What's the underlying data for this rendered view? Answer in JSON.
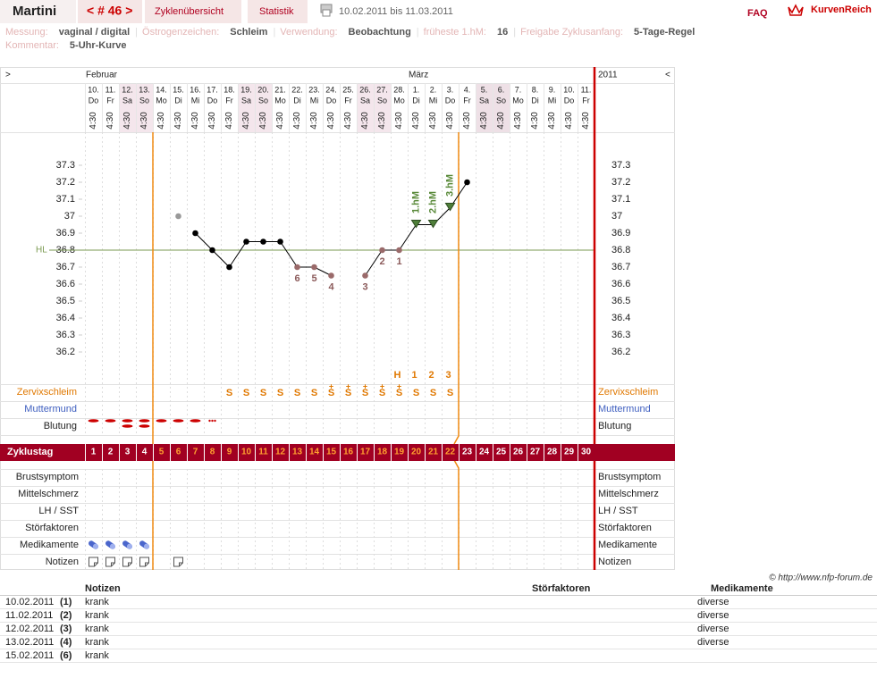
{
  "header": {
    "user": "Martini",
    "cycle_nav": "< # 46 >",
    "tabs": [
      "Zyklenübersicht",
      "Statistik"
    ],
    "period": "10.02.2011 bis 11.03.2011",
    "faq": "FAQ",
    "brand": "KurvenReich"
  },
  "info": {
    "items": [
      {
        "label": "Messung:",
        "value": "vaginal / digital"
      },
      {
        "label": "Östrogenzeichen:",
        "value": "Schleim"
      },
      {
        "label": "Verwendung:",
        "value": "Beobachtung"
      },
      {
        "label": "früheste 1.hM:",
        "value": 16
      },
      {
        "label": "Freigabe Zyklusanfang:",
        "value": "5-Tage-Regel"
      }
    ],
    "comment_label": "Kommentar:",
    "comment": "5-Uhr-Kurve"
  },
  "chart_data": {
    "type": "line",
    "nav_prev": ">",
    "nav_next": "<",
    "year": "2011",
    "months": [
      "Februar",
      null,
      null,
      null,
      null,
      null,
      null,
      null,
      null,
      null,
      null,
      null,
      null,
      null,
      null,
      null,
      null,
      null,
      null,
      "März",
      null,
      null,
      null,
      null,
      null,
      null,
      null,
      null,
      null,
      null
    ],
    "categories": [
      "10.",
      "11.",
      "12.",
      "13.",
      "14.",
      "15.",
      "16.",
      "17.",
      "18.",
      "19.",
      "20.",
      "21.",
      "22.",
      "23.",
      "24.",
      "25.",
      "26.",
      "27.",
      "28.",
      "1.",
      "2.",
      "3.",
      "4.",
      "5.",
      "6.",
      "7.",
      "8.",
      "9.",
      "10.",
      "11."
    ],
    "weekdays": [
      "Do",
      "Fr",
      "Sa",
      "So",
      "Mo",
      "Di",
      "Mi",
      "Do",
      "Fr",
      "Sa",
      "So",
      "Mo",
      "Di",
      "Mi",
      "Do",
      "Fr",
      "Sa",
      "So",
      "Mo",
      "Di",
      "Mi",
      "Do",
      "Fr",
      "Sa",
      "So",
      "Mo",
      "Di",
      "Mi",
      "Do",
      "Fr"
    ],
    "times": [
      "4:30",
      "4:30",
      "4:30",
      "4:30",
      "4:30",
      "4:30",
      "4:30",
      "4:30",
      "4:30",
      "4:30",
      "4:30",
      "4:30",
      "4:30",
      "4:30",
      "4:30",
      "4:30",
      "4:30",
      "4:30",
      "4:30",
      "4:30",
      "4:30",
      "4:30",
      "4:30",
      "4:30",
      "4:30",
      "4:30",
      "4:30",
      "4:30",
      "4:30",
      "4:30"
    ],
    "ylim": [
      36.0,
      37.5
    ],
    "yticks": [
      36.2,
      36.3,
      36.4,
      36.5,
      36.6,
      36.7,
      36.8,
      36.9,
      37,
      37.1,
      37.2,
      37.3
    ],
    "grid": false,
    "hl": 36.8,
    "hl_label": "HL",
    "hl_color": "#7a9a50",
    "series": [
      {
        "color": "#000000",
        "values": [
          null,
          null,
          null,
          null,
          null,
          null,
          36.9,
          36.8,
          36.7,
          36.85,
          36.85,
          36.85,
          36.7,
          36.7,
          36.65,
          null,
          36.65,
          36.8,
          36.8,
          36.95,
          36.95,
          37.05,
          37.2,
          null,
          null,
          null,
          null,
          null,
          null,
          null
        ]
      },
      {
        "color": "#999999",
        "values": [
          null,
          null,
          null,
          null,
          null,
          37.0,
          null,
          null,
          null,
          null,
          null,
          null,
          null,
          null,
          null,
          null,
          null,
          null,
          null,
          null,
          null,
          null,
          null,
          null,
          null,
          null,
          null,
          null,
          null,
          null
        ]
      }
    ],
    "low_labels": [
      null,
      null,
      null,
      null,
      null,
      null,
      null,
      null,
      null,
      null,
      null,
      null,
      "6",
      "5",
      "4",
      null,
      "3",
      "2",
      "1",
      null,
      null,
      null,
      null,
      null,
      null,
      null,
      null,
      null,
      null,
      null
    ],
    "hm_labels": [
      null,
      null,
      null,
      null,
      null,
      null,
      null,
      null,
      null,
      null,
      null,
      null,
      null,
      null,
      null,
      null,
      null,
      null,
      null,
      "1.hM",
      "2.hM",
      "3.hM",
      null,
      null,
      null,
      null,
      null,
      null,
      null,
      null
    ],
    "peak_labels": [
      null,
      null,
      null,
      null,
      null,
      null,
      null,
      null,
      null,
      null,
      null,
      null,
      null,
      null,
      null,
      null,
      null,
      null,
      "H",
      "1",
      "2",
      "3",
      null,
      null,
      null,
      null,
      null,
      null,
      null,
      null
    ],
    "mucus_plus": [
      null,
      null,
      null,
      null,
      null,
      null,
      null,
      null,
      null,
      null,
      null,
      null,
      null,
      null,
      "+",
      "+",
      "+",
      "+",
      "+",
      null,
      null,
      null,
      null,
      null,
      null,
      null,
      null,
      null,
      null,
      null
    ],
    "mucus": [
      null,
      null,
      null,
      null,
      null,
      null,
      null,
      null,
      "S",
      "S",
      "S",
      "S",
      "S",
      "S",
      "S",
      "S",
      "S",
      "S",
      "S",
      "S",
      "S",
      "S",
      null,
      null,
      null,
      null,
      null,
      null,
      null,
      null
    ],
    "bleeding": [
      2,
      2,
      3,
      3,
      2,
      2,
      2,
      1,
      null,
      null,
      null,
      null,
      null,
      null,
      null,
      null,
      null,
      null,
      null,
      null,
      null,
      null,
      null,
      null,
      null,
      null,
      null,
      null,
      null,
      null
    ],
    "row_labels": {
      "mucus": "Zervixschleim",
      "cervix": "Muttermund",
      "bleeding": "Blutung"
    },
    "cycle_day_label": "Zyklustag",
    "cycle_days": [
      1,
      2,
      3,
      4,
      5,
      6,
      7,
      8,
      9,
      10,
      11,
      12,
      13,
      14,
      15,
      16,
      17,
      18,
      19,
      20,
      21,
      22,
      23,
      24,
      25,
      26,
      27,
      28,
      29,
      30
    ],
    "lower_rows": [
      "Brustsymptom",
      "Mittelschmerz",
      "LH / SST",
      "Störfaktoren",
      "Medikamente",
      "Notizen"
    ],
    "medication": [
      true,
      true,
      true,
      true,
      false,
      false,
      false,
      false,
      false,
      false,
      false,
      false,
      false,
      false,
      false,
      false,
      false,
      false,
      false,
      false,
      false,
      false,
      false,
      false,
      false,
      false,
      false,
      false,
      false,
      false
    ],
    "notes": [
      true,
      true,
      true,
      true,
      false,
      true,
      false,
      false,
      false,
      false,
      false,
      false,
      false,
      false,
      false,
      false,
      false,
      false,
      false,
      false,
      false,
      false,
      false,
      false,
      false,
      false,
      false,
      false,
      false,
      false
    ]
  },
  "copyright": "© http://www.nfp-forum.de",
  "notes_table": {
    "columns": [
      "Notizen",
      "Störfaktoren",
      "Medikamente"
    ],
    "rows": [
      [
        "10.02.2011",
        "(1)",
        "krank",
        null,
        "diverse"
      ],
      [
        "11.02.2011",
        "(2)",
        "krank",
        null,
        "diverse"
      ],
      [
        "12.02.2011",
        "(3)",
        "krank",
        null,
        "diverse"
      ],
      [
        "13.02.2011",
        "(4)",
        "krank",
        null,
        "diverse"
      ],
      [
        "15.02.2011",
        "(6)",
        "krank",
        null,
        null
      ]
    ]
  }
}
